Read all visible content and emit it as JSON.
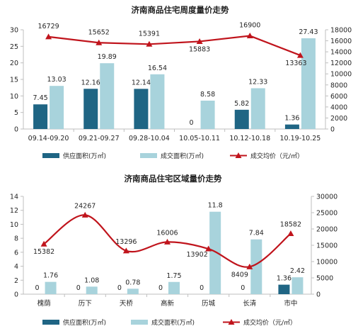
{
  "colors": {
    "supply": "#1f6584",
    "deal": "#a8d3dc",
    "price": "#c0141c",
    "axis": "#bfbfbf"
  },
  "chart_data": [
    {
      "type": "bar",
      "title": "济南商品住宅周度量价走势",
      "categories": [
        "09.14-09.20",
        "09.21-09.27",
        "09.28-10.04",
        "10.05-10.11",
        "10.12-10.18",
        "10.19-10.25"
      ],
      "series": [
        {
          "name": "供应面积(万㎡)",
          "kind": "bar",
          "axis": "left",
          "color": "#1f6584",
          "values": [
            7.45,
            12.16,
            12.14,
            0,
            5.82,
            1.36
          ]
        },
        {
          "name": "成交面积(万㎡)",
          "kind": "bar",
          "axis": "left",
          "color": "#a8d3dc",
          "values": [
            13.03,
            19.89,
            16.54,
            8.58,
            12.33,
            27.43
          ]
        },
        {
          "name": "成交均价（元/㎡）",
          "kind": "line",
          "axis": "right",
          "color": "#c0141c",
          "values": [
            16729,
            15652,
            15391,
            15883,
            16900,
            13363
          ]
        }
      ],
      "left_axis": {
        "min": 0,
        "max": 30,
        "ticks": [
          0,
          5,
          10,
          15,
          20,
          25,
          30
        ]
      },
      "right_axis": {
        "min": 0,
        "max": 18000,
        "ticks": [
          0,
          2000,
          4000,
          6000,
          8000,
          10000,
          12000,
          14000,
          16000,
          18000
        ]
      },
      "line_labels": [
        "16729",
        "15652",
        "15391",
        "15883",
        "16900",
        "13363"
      ],
      "legend_position": "bottom",
      "grid": false
    },
    {
      "type": "bar",
      "title": "济南商品住宅区域量价走势",
      "categories": [
        "槐荫",
        "历下",
        "天桥",
        "高新",
        "历城",
        "长清",
        "市中"
      ],
      "series": [
        {
          "name": "供应面积(万㎡)",
          "kind": "bar",
          "axis": "left",
          "color": "#1f6584",
          "values": [
            0,
            0,
            0,
            0,
            0,
            0,
            1.36
          ]
        },
        {
          "name": "成交面积(万㎡)",
          "kind": "bar",
          "axis": "left",
          "color": "#a8d3dc",
          "values": [
            1.76,
            1.08,
            0.78,
            1.75,
            11.8,
            7.84,
            2.42
          ]
        },
        {
          "name": "成交均价（元/㎡）",
          "kind": "line",
          "axis": "right",
          "color": "#c0141c",
          "smooth": true,
          "values": [
            15382,
            24267,
            13296,
            16006,
            13902,
            8409,
            18582
          ]
        }
      ],
      "left_axis": {
        "min": 0,
        "max": 14,
        "ticks": [
          0,
          2,
          4,
          6,
          8,
          10,
          12,
          14
        ]
      },
      "right_axis": {
        "min": 0,
        "max": 30000,
        "ticks": [
          0,
          5000,
          10000,
          15000,
          20000,
          25000,
          30000
        ]
      },
      "line_labels": [
        "15382",
        "24267",
        "13296",
        "16006",
        "13902",
        "8409",
        "18582"
      ],
      "legend_position": "bottom",
      "grid": false
    }
  ]
}
